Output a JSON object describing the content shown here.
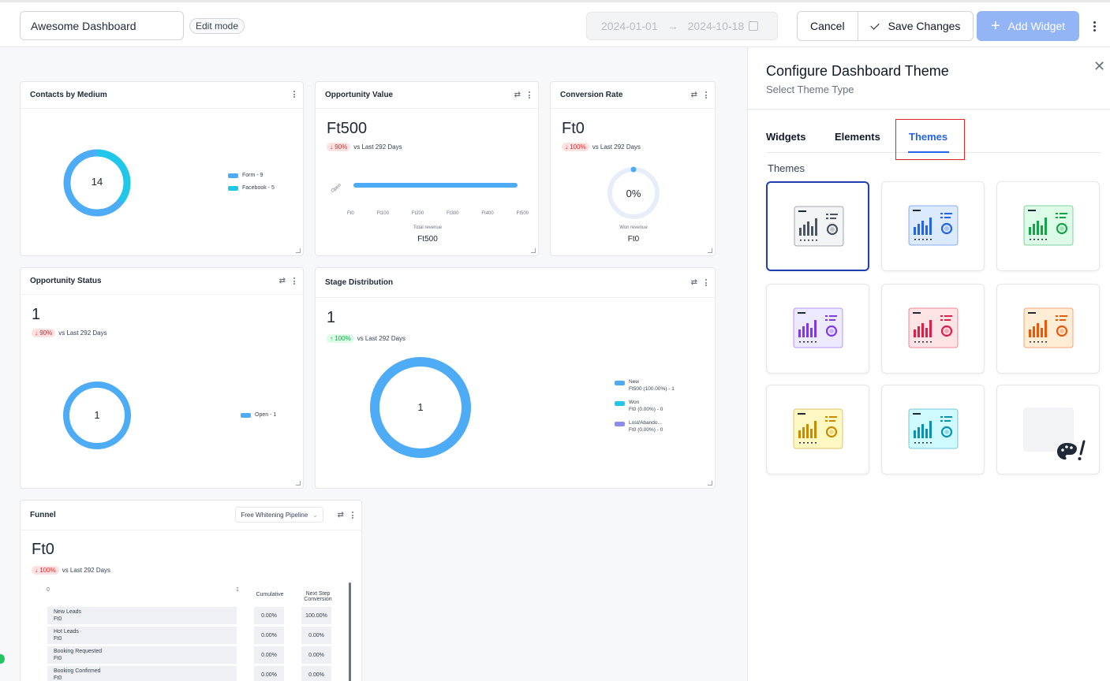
{
  "header": {
    "dashboard_name": "Awesome Dashboard",
    "mode_badge": "Edit mode",
    "date_start": "2024-01-01",
    "date_arrow": "→",
    "date_end": "2024-10-18",
    "cancel_label": "Cancel",
    "save_label": "Save Changes",
    "add_widget_label": "Add Widget"
  },
  "widgets": {
    "contacts": {
      "title": "Contacts by Medium",
      "total": "14",
      "legend": [
        "Form - 9",
        "Facebook - 5"
      ]
    },
    "opportunity_value": {
      "title": "Opportunity Value",
      "value": "Ft500",
      "delta": "↓ 90%",
      "delta_text": "vs Last 292 Days",
      "bar_label": "Open",
      "ticks": [
        "Ft0",
        "Ft100",
        "Ft200",
        "Ft300",
        "Ft400",
        "Ft500"
      ],
      "footer_label": "Total revenue",
      "footer_value": "Ft500"
    },
    "conversion_rate": {
      "title": "Conversion Rate",
      "value": "Ft0",
      "delta": "↓ 100%",
      "delta_text": "vs Last 292 Days",
      "gauge": "0%",
      "footer_label": "Won revenue",
      "footer_value": "Ft0"
    },
    "opportunity_status": {
      "title": "Opportunity Status",
      "value": "1",
      "delta": "↓ 90%",
      "delta_text": "vs Last 292 Days",
      "donut": "1",
      "legend": [
        "Open - 1"
      ]
    },
    "stage_distribution": {
      "title": "Stage Distribution",
      "value": "1",
      "delta": "↑ 100%",
      "delta_text": "vs Last 292 Days",
      "donut": "1",
      "legend": [
        {
          "name": "New",
          "detail": "Ft500 (100.00%) - 1"
        },
        {
          "name": "Won",
          "detail": "Ft0 (0.00%) - 0"
        },
        {
          "name": "Lost/Abando...",
          "detail": "Ft0 (0.00%) - 0"
        }
      ]
    },
    "funnel": {
      "title": "Funnel",
      "pipeline": "Free Whitening Pipeline",
      "value": "Ft0",
      "delta": "↓ 100%",
      "delta_text": "vs Last 292 Days",
      "axis_min": "0",
      "axis_max": "1",
      "col_cumulative": "Cumulative",
      "col_next_1": "Next Step",
      "col_next_2": "Conversion",
      "rows": [
        {
          "stage": "New Leads",
          "amount": "Ft0",
          "cumulative": "0.00%",
          "next": "100.00%"
        },
        {
          "stage": "Hot Leads",
          "amount": "Ft0",
          "cumulative": "0.00%",
          "next": "0.00%"
        },
        {
          "stage": "Booking Requested",
          "amount": "Ft0",
          "cumulative": "0.00%",
          "next": "0.00%"
        },
        {
          "stage": "Booking Confirmed",
          "amount": "Ft0",
          "cumulative": "0.00%",
          "next": "0.00%"
        }
      ]
    }
  },
  "panel": {
    "title": "Configure Dashboard Theme",
    "subtitle": "Select Theme Type",
    "tabs": [
      "Widgets",
      "Elements",
      "Themes"
    ],
    "active_tab": "Themes",
    "section_label": "Themes",
    "themes": [
      {
        "name": "gray",
        "color": "#4b5563",
        "bg": "#f3f4f6"
      },
      {
        "name": "blue",
        "color": "#2563eb",
        "bg": "#dbeafe"
      },
      {
        "name": "green",
        "color": "#16a34a",
        "bg": "#dcfce7"
      },
      {
        "name": "purple",
        "color": "#7c3aed",
        "bg": "#ede9fe"
      },
      {
        "name": "pink",
        "color": "#e11d48",
        "bg": "#ffe4e6"
      },
      {
        "name": "orange",
        "color": "#ea580c",
        "bg": "#ffedd5"
      },
      {
        "name": "yellow",
        "color": "#ca8a04",
        "bg": "#fef9c3"
      },
      {
        "name": "cyan",
        "color": "#0891b2",
        "bg": "#cffafe"
      },
      {
        "name": "custom-palette",
        "color": "#1f2937",
        "bg": "#f3f4f6"
      }
    ]
  },
  "colors": {
    "primary_blue": "#4eabf5",
    "cyan": "#21c7e8",
    "lavender": "#8b8cf0",
    "accent": "#2563eb"
  }
}
